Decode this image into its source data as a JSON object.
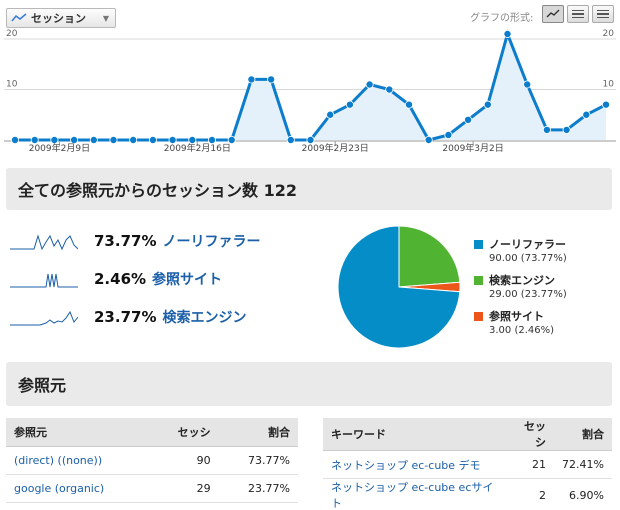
{
  "toolbar": {
    "metric_label": "セッション",
    "graph_format_label": "グラフの形式:",
    "format_buttons": [
      "line-graph",
      "table",
      "list"
    ]
  },
  "chart_data": {
    "type": "area",
    "x_tick_labels": [
      "2009年2月9日",
      "2009年2月16日",
      "2009年2月23日",
      "2009年3月2日"
    ],
    "y_tick_labels": [
      "20",
      "10"
    ],
    "ylim": [
      0,
      21
    ],
    "grid": true,
    "series": [
      {
        "values": [
          0,
          0,
          0,
          0,
          0,
          0,
          0,
          0,
          0,
          0,
          0,
          0,
          12,
          12,
          0,
          0,
          5,
          7,
          11,
          10,
          7,
          0,
          1,
          4,
          7,
          21,
          11,
          2,
          2,
          5,
          7
        ]
      }
    ]
  },
  "summary": {
    "title": "全ての参照元からのセッション数 122",
    "sources": [
      {
        "pct": "73.77%",
        "label": "ノーリファラー"
      },
      {
        "pct": "2.46%",
        "label": "参照サイト"
      },
      {
        "pct": "23.77%",
        "label": "検索エンジン"
      }
    ]
  },
  "pie": {
    "slices": [
      {
        "label": "ノーリファラー",
        "value_text": "90.00 (73.77%)",
        "value": 90,
        "color": "#058dc7"
      },
      {
        "label": "検索エンジン",
        "value_text": "29.00 (23.77%)",
        "value": 29,
        "color": "#50b432"
      },
      {
        "label": "参照サイト",
        "value_text": "3.00 (2.46%)",
        "value": 3,
        "color": "#ed561b"
      }
    ]
  },
  "sources_section": {
    "title": "参照元",
    "left_table": {
      "headers": [
        "参照元",
        "セッシ",
        "割合"
      ],
      "rows": [
        [
          "(direct) ((none))",
          "90",
          "73.77%"
        ],
        [
          "google (organic)",
          "29",
          "23.77%"
        ]
      ]
    },
    "right_table": {
      "headers": [
        "キーワード",
        "セッシ",
        "割合"
      ],
      "rows": [
        [
          "ネットショップ ec-cube デモ",
          "21",
          "72.41%"
        ],
        [
          "ネットショップ ec-cube ecサイト",
          "2",
          "6.90%"
        ]
      ]
    }
  }
}
